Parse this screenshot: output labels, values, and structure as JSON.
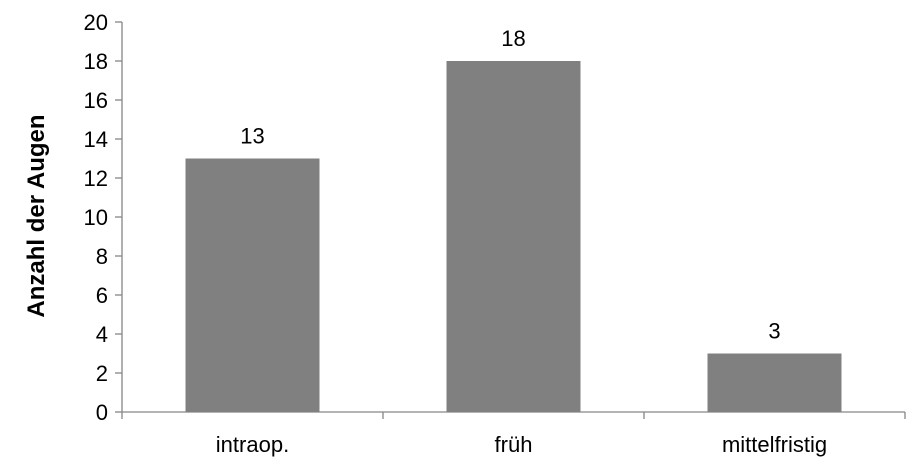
{
  "chart_data": {
    "type": "bar",
    "title": "",
    "xlabel": "",
    "ylabel": "Anzahl der Augen",
    "categories": [
      "intraop.",
      "früh",
      "mittelfristig"
    ],
    "values": [
      13,
      18,
      3
    ],
    "data_labels": [
      "13",
      "18",
      "3"
    ],
    "ylim": [
      0,
      20
    ],
    "yticks": [
      0,
      2,
      4,
      6,
      8,
      10,
      12,
      14,
      16,
      18,
      20
    ],
    "ytick_labels": [
      "0",
      "2",
      "4",
      "6",
      "8",
      "10",
      "12",
      "14",
      "16",
      "18",
      "20"
    ],
    "grid": false,
    "legend": "none",
    "colors": {
      "bar": "#808080",
      "axis": "#868686",
      "text": "#000000"
    }
  }
}
